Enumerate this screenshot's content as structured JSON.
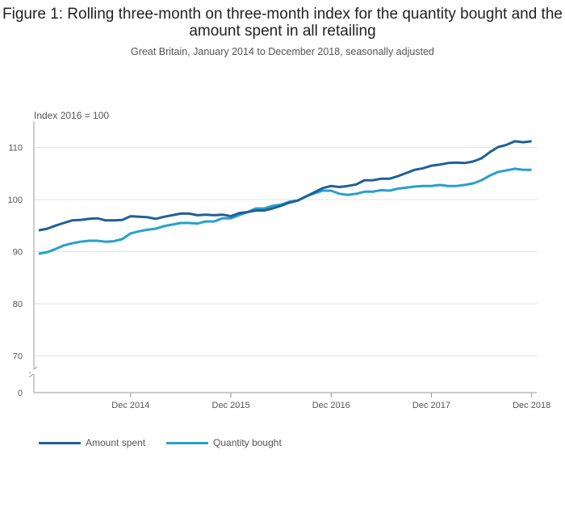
{
  "chart_data": {
    "type": "line",
    "title": "Figure 1: Rolling three-month on three-month index for the quantity bought and the amount spent in all retailing",
    "subtitle": "Great Britain, January 2014 to December 2018, seasonally adjusted",
    "ylabel": "Index 2016 = 100",
    "xlabel": "",
    "y_ticks": [
      0,
      70,
      80,
      90,
      100,
      110
    ],
    "y_axis_break": true,
    "ylim": [
      0,
      115
    ],
    "x_start": "Jan 2014",
    "x_end": "Dec 2018",
    "x_ticks": [
      "Dec 2014",
      "Dec 2015",
      "Dec 2016",
      "Dec 2017",
      "Dec 2018"
    ],
    "grid": true,
    "legend_position": "bottom-left",
    "series": [
      {
        "name": "Amount spent",
        "color": "#206095",
        "values": [
          94.1,
          94.4,
          95.0,
          95.5,
          96.0,
          96.1,
          96.3,
          96.4,
          96.0,
          96.0,
          96.1,
          96.8,
          96.7,
          96.6,
          96.3,
          96.7,
          97.0,
          97.3,
          97.3,
          97.0,
          97.1,
          97.0,
          97.1,
          96.8,
          97.4,
          97.6,
          97.9,
          97.9,
          98.3,
          98.8,
          99.4,
          99.8,
          100.6,
          101.4,
          102.2,
          102.6,
          102.4,
          102.6,
          102.9,
          103.7,
          103.7,
          104.0,
          104.0,
          104.5,
          105.1,
          105.7,
          106.0,
          106.5,
          106.7,
          107.0,
          107.1,
          107.0,
          107.3,
          107.9,
          109.1,
          110.1,
          110.5,
          111.2,
          111.0,
          111.2
        ]
      },
      {
        "name": "Quantity bought",
        "color": "#27a0cc",
        "values": [
          89.6,
          89.9,
          90.5,
          91.2,
          91.6,
          91.9,
          92.1,
          92.1,
          91.9,
          92.0,
          92.4,
          93.5,
          93.9,
          94.2,
          94.4,
          94.9,
          95.2,
          95.5,
          95.5,
          95.4,
          95.8,
          95.8,
          96.4,
          96.4,
          97.0,
          97.6,
          98.3,
          98.3,
          98.8,
          99.0,
          99.6,
          99.8,
          100.6,
          101.2,
          101.7,
          101.7,
          101.1,
          100.9,
          101.1,
          101.5,
          101.5,
          101.8,
          101.7,
          102.1,
          102.3,
          102.5,
          102.6,
          102.6,
          102.8,
          102.6,
          102.6,
          102.8,
          103.1,
          103.7,
          104.6,
          105.3,
          105.6,
          105.9,
          105.7,
          105.7
        ]
      }
    ]
  }
}
